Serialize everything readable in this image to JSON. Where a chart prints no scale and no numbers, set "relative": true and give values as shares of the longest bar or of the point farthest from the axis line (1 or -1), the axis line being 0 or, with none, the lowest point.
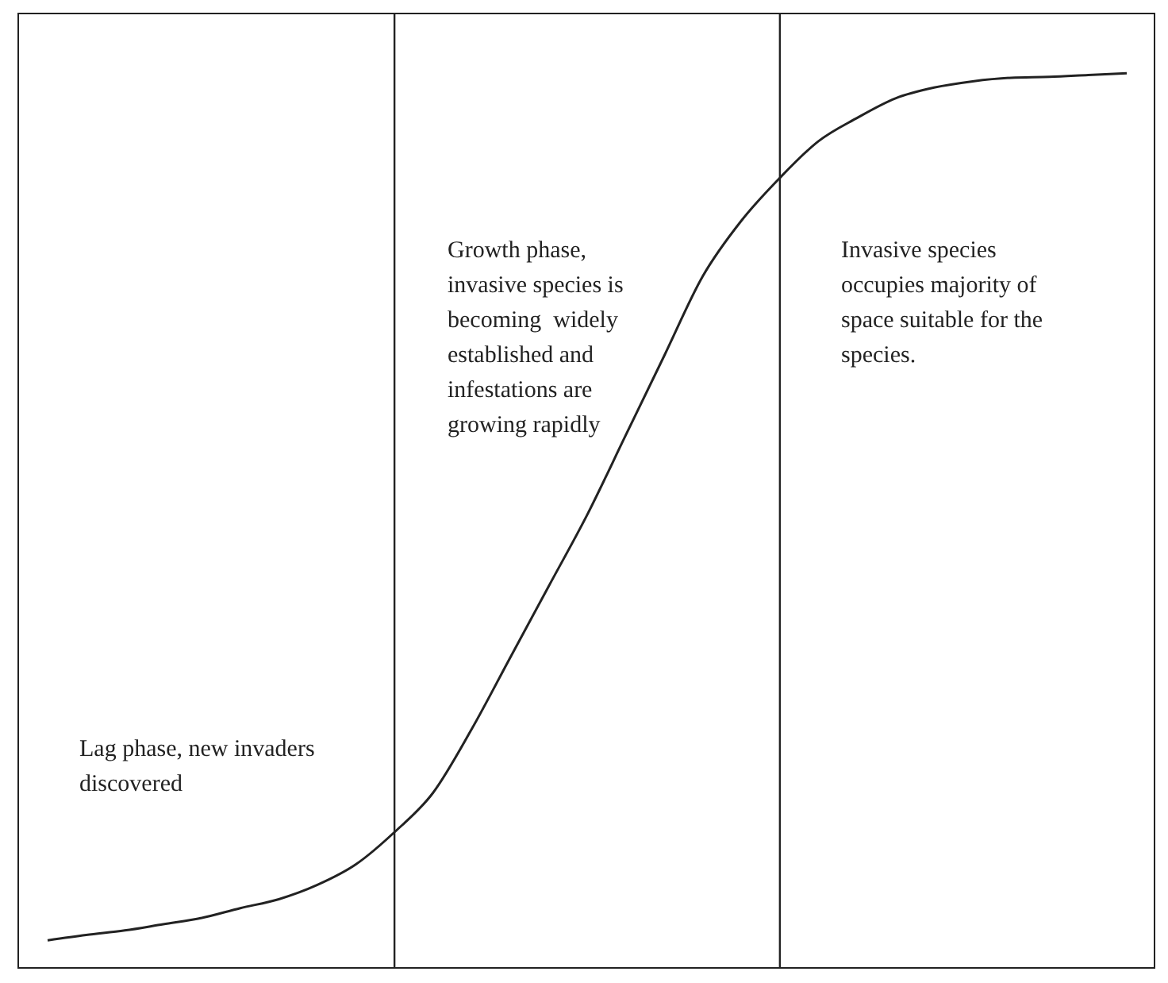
{
  "chart_data": {
    "type": "line",
    "relative": true,
    "categories": [
      null,
      null,
      null,
      null,
      null,
      null,
      null,
      null,
      null,
      null,
      null,
      null,
      null,
      null,
      null,
      null,
      null,
      null,
      null,
      null,
      null,
      null,
      null,
      null,
      null,
      null,
      null,
      null,
      null
    ],
    "series": [
      {
        "color": "#222222",
        "values": [
          0.03,
          0.036,
          0.041,
          0.048,
          0.055,
          0.066,
          0.076,
          0.092,
          0.115,
          0.151,
          0.195,
          0.266,
          0.346,
          0.426,
          0.506,
          0.595,
          0.684,
          0.773,
          0.835,
          0.883,
          0.924,
          0.95,
          0.972,
          0.984,
          0.991,
          0.995,
          0.996,
          0.998,
          1
        ]
      }
    ],
    "annotations": [
      "Lag phase, new invaders discovered",
      "Growth phase, invasive species is becoming  widely established and infestations are growing rapidly",
      "Invasive species occupies majority of space suitable for the species."
    ],
    "marker": "none",
    "line_style": "solid",
    "grid": false,
    "legend": false,
    "tick_labels": false
  }
}
